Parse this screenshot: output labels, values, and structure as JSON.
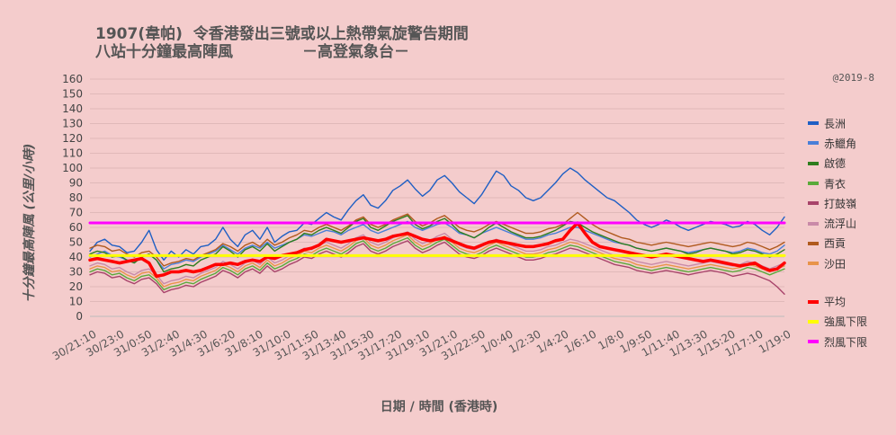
{
  "titles": {
    "line1": "1907(韋帕)  令香港發出三號或以上熱帶氣旋警告期間",
    "line2": "八站十分鐘最高陣風             －高登氣象台－"
  },
  "credit": "@2019-8",
  "chart_data": {
    "type": "line",
    "ylabel": "十分鐘最高陣風 (公里/小時)",
    "xlabel": "日期 / 時間 (香港時)",
    "ylim": [
      0,
      160
    ],
    "yticks": [
      0,
      10,
      20,
      30,
      40,
      50,
      60,
      70,
      80,
      90,
      100,
      110,
      120,
      130,
      140,
      150,
      160
    ],
    "grid": true,
    "legend_position": "right",
    "x_tick_labels": [
      "30/21:10",
      "30/23:0",
      "31/0:50",
      "31/2:40",
      "31/4:30",
      "31/6:20",
      "31/8:10",
      "31/10:0",
      "31/11:50",
      "31/13:40",
      "31/15:30",
      "31/17:20",
      "31/19:10",
      "31/21:0",
      "31/22:50",
      "1/0:40",
      "1/2:30",
      "1/4:20",
      "1/6:10",
      "1/8:0",
      "1/9:50",
      "1/11:40",
      "1/13:30",
      "1/15:20",
      "1/17:10",
      "1/19:0"
    ],
    "series": [
      {
        "name": "長洲",
        "color": "#1f5fc4",
        "values": [
          44,
          50,
          52,
          48,
          47,
          43,
          44,
          50,
          58,
          45,
          38,
          44,
          40,
          45,
          42,
          47,
          48,
          52,
          60,
          52,
          47,
          55,
          58,
          52,
          60,
          50,
          54,
          57,
          58,
          63,
          62,
          66,
          70,
          67,
          65,
          72,
          78,
          82,
          75,
          73,
          78,
          85,
          88,
          92,
          86,
          81,
          85,
          92,
          95,
          90,
          84,
          80,
          76,
          82,
          90,
          98,
          95,
          88,
          85,
          80,
          78,
          80,
          85,
          90,
          96,
          100,
          97,
          92,
          88,
          84,
          80,
          78,
          74,
          70,
          65,
          62,
          60,
          62,
          65,
          63,
          60,
          58,
          60,
          62,
          64,
          63,
          62,
          60,
          61,
          64,
          62,
          58,
          55,
          60,
          67
        ]
      },
      {
        "name": "赤鱲角",
        "color": "#4a7fd8",
        "values": [
          40,
          42,
          44,
          41,
          40,
          38,
          37,
          40,
          42,
          38,
          32,
          35,
          36,
          38,
          37,
          40,
          42,
          44,
          48,
          45,
          42,
          46,
          48,
          46,
          50,
          46,
          48,
          50,
          52,
          55,
          54,
          56,
          58,
          57,
          55,
          58,
          60,
          62,
          58,
          56,
          58,
          60,
          62,
          64,
          60,
          58,
          60,
          62,
          63,
          60,
          56,
          55,
          53,
          56,
          58,
          60,
          58,
          56,
          54,
          52,
          52,
          53,
          55,
          56,
          58,
          60,
          60,
          58,
          56,
          54,
          52,
          50,
          49,
          48,
          46,
          45,
          44,
          45,
          46,
          45,
          44,
          43,
          44,
          45,
          46,
          45,
          44,
          43,
          44,
          46,
          45,
          43,
          42,
          44,
          48
        ]
      },
      {
        "name": "啟德",
        "color": "#2e7d1e",
        "values": [
          42,
          44,
          43,
          40,
          41,
          38,
          36,
          40,
          42,
          38,
          30,
          32,
          33,
          35,
          34,
          38,
          40,
          42,
          47,
          44,
          40,
          45,
          47,
          44,
          49,
          44,
          47,
          50,
          52,
          56,
          55,
          58,
          60,
          58,
          56,
          60,
          64,
          66,
          60,
          58,
          61,
          64,
          66,
          68,
          62,
          59,
          61,
          64,
          66,
          62,
          57,
          55,
          53,
          56,
          60,
          63,
          60,
          57,
          55,
          53,
          53,
          54,
          56,
          58,
          61,
          64,
          63,
          60,
          57,
          55,
          53,
          51,
          49,
          48,
          46,
          45,
          44,
          45,
          46,
          45,
          44,
          42,
          43,
          45,
          46,
          45,
          44,
          42,
          43,
          45,
          44,
          42,
          40,
          42,
          45
        ]
      },
      {
        "name": "青衣",
        "color": "#5aaa3a",
        "values": [
          30,
          32,
          31,
          28,
          29,
          26,
          24,
          27,
          28,
          24,
          18,
          20,
          21,
          23,
          22,
          25,
          27,
          29,
          33,
          31,
          28,
          32,
          34,
          31,
          36,
          32,
          34,
          37,
          39,
          42,
          41,
          44,
          46,
          44,
          42,
          45,
          49,
          51,
          46,
          44,
          46,
          49,
          51,
          53,
          48,
          45,
          47,
          50,
          52,
          48,
          44,
          42,
          41,
          43,
          46,
          48,
          46,
          44,
          42,
          40,
          40,
          41,
          43,
          44,
          46,
          48,
          47,
          45,
          43,
          41,
          39,
          37,
          36,
          35,
          33,
          32,
          31,
          32,
          33,
          32,
          31,
          30,
          31,
          32,
          33,
          32,
          31,
          30,
          31,
          33,
          32,
          30,
          28,
          30,
          32
        ]
      },
      {
        "name": "打鼓嶺",
        "color": "#a8436a",
        "values": [
          28,
          30,
          29,
          26,
          27,
          24,
          22,
          25,
          26,
          22,
          16,
          18,
          19,
          21,
          20,
          23,
          25,
          27,
          31,
          29,
          26,
          30,
          32,
          29,
          34,
          30,
          32,
          35,
          37,
          40,
          39,
          42,
          44,
          42,
          40,
          43,
          47,
          49,
          44,
          42,
          44,
          47,
          49,
          51,
          46,
          43,
          45,
          48,
          50,
          46,
          42,
          40,
          39,
          41,
          44,
          46,
          44,
          42,
          40,
          38,
          38,
          39,
          41,
          42,
          44,
          46,
          45,
          43,
          41,
          39,
          37,
          35,
          34,
          33,
          31,
          30,
          29,
          30,
          31,
          30,
          29,
          28,
          29,
          30,
          31,
          30,
          29,
          27,
          28,
          29,
          28,
          26,
          24,
          20,
          15
        ]
      },
      {
        "name": "流浮山",
        "color": "#c98aa8",
        "values": [
          34,
          36,
          35,
          32,
          33,
          30,
          28,
          31,
          32,
          28,
          22,
          24,
          25,
          27,
          26,
          29,
          31,
          33,
          37,
          35,
          32,
          36,
          38,
          35,
          40,
          36,
          38,
          41,
          43,
          46,
          45,
          48,
          50,
          48,
          46,
          49,
          53,
          55,
          50,
          48,
          50,
          53,
          55,
          57,
          52,
          49,
          51,
          54,
          56,
          52,
          48,
          46,
          45,
          47,
          50,
          52,
          50,
          48,
          46,
          44,
          44,
          45,
          47,
          48,
          50,
          52,
          51,
          49,
          47,
          45,
          43,
          41,
          40,
          39,
          37,
          36,
          35,
          36,
          37,
          36,
          35,
          34,
          35,
          36,
          37,
          36,
          35,
          34,
          35,
          37,
          36,
          34,
          32,
          34,
          36
        ]
      },
      {
        "name": "西貢",
        "color": "#b05a1e",
        "values": [
          46,
          48,
          47,
          44,
          45,
          42,
          40,
          43,
          44,
          40,
          34,
          36,
          37,
          39,
          38,
          41,
          43,
          45,
          49,
          47,
          44,
          48,
          50,
          47,
          52,
          48,
          50,
          53,
          55,
          58,
          57,
          60,
          62,
          60,
          58,
          61,
          65,
          67,
          62,
          60,
          62,
          65,
          67,
          69,
          64,
          61,
          63,
          66,
          68,
          64,
          60,
          58,
          57,
          59,
          62,
          64,
          62,
          60,
          58,
          56,
          56,
          57,
          59,
          60,
          62,
          66,
          70,
          66,
          62,
          59,
          57,
          55,
          53,
          52,
          50,
          49,
          48,
          49,
          50,
          49,
          48,
          47,
          48,
          49,
          50,
          49,
          48,
          47,
          48,
          50,
          49,
          47,
          45,
          47,
          50
        ]
      },
      {
        "name": "沙田",
        "color": "#e8944a",
        "values": [
          32,
          34,
          33,
          30,
          31,
          28,
          26,
          29,
          30,
          26,
          20,
          22,
          23,
          25,
          24,
          27,
          29,
          31,
          35,
          33,
          30,
          34,
          36,
          33,
          38,
          34,
          36,
          39,
          41,
          44,
          43,
          46,
          48,
          46,
          44,
          47,
          51,
          53,
          48,
          46,
          48,
          51,
          53,
          55,
          50,
          47,
          49,
          52,
          54,
          50,
          46,
          44,
          43,
          45,
          48,
          50,
          48,
          46,
          44,
          42,
          42,
          43,
          45,
          46,
          48,
          50,
          49,
          47,
          45,
          43,
          41,
          39,
          38,
          37,
          35,
          34,
          33,
          34,
          35,
          34,
          33,
          32,
          33,
          34,
          35,
          34,
          33,
          32,
          33,
          35,
          34,
          32,
          30,
          32,
          34
        ]
      },
      {
        "name": "平均",
        "color": "#ff0000",
        "values": [
          38,
          39,
          38,
          37,
          36,
          37,
          38,
          39,
          36,
          27,
          28,
          30,
          30,
          31,
          30,
          31,
          33,
          35,
          35,
          36,
          35,
          37,
          38,
          37,
          40,
          39,
          41,
          42,
          43,
          45,
          46,
          48,
          52,
          51,
          50,
          51,
          52,
          53,
          52,
          51,
          52,
          54,
          55,
          56,
          54,
          52,
          51,
          52,
          53,
          51,
          49,
          47,
          46,
          48,
          50,
          51,
          50,
          49,
          48,
          47,
          47,
          48,
          49,
          51,
          52,
          58,
          63,
          56,
          50,
          47,
          46,
          45,
          44,
          43,
          42,
          41,
          40,
          41,
          42,
          41,
          40,
          39,
          38,
          37,
          38,
          37,
          36,
          35,
          34,
          35,
          36,
          33,
          31,
          32,
          36
        ]
      },
      {
        "name": "強風下限",
        "color": "#ffff00",
        "values": [
          41
        ]
      },
      {
        "name": "烈風下限",
        "color": "#ff00ff",
        "values": [
          63
        ]
      }
    ]
  }
}
